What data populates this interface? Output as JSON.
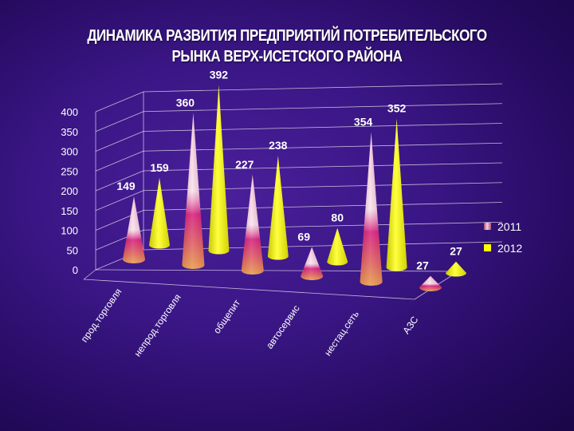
{
  "title": "ДИНАМИКА РАЗВИТИЯ ПРЕДПРИЯТИЙ ПОТРЕБИТЕЛЬСКОГО РЫНКА ВЕРХ-ИСЕТСКОГО РАЙОНА",
  "chart_data": {
    "type": "bar",
    "title": "ДИНАМИКА РАЗВИТИЯ ПРЕДПРИЯТИЙ ПОТРЕБИТЕЛЬСКОГО РЫНКА ВЕРХ-ИСЕТСКОГО РАЙОНА",
    "categories": [
      "прод.торговля",
      "непрод.торговля",
      "общепит",
      "автосервис",
      "нестац.сеть",
      "АЗС"
    ],
    "series": [
      {
        "name": "2011",
        "values": [
          149,
          360,
          227,
          69,
          354,
          27
        ],
        "color": "#e8a0b8"
      },
      {
        "name": "2012",
        "values": [
          159,
          392,
          238,
          80,
          352,
          27
        ],
        "color": "#ffff00"
      }
    ],
    "ylim": [
      0,
      400
    ],
    "yticks": [
      0,
      50,
      100,
      150,
      200,
      250,
      300,
      350,
      400
    ],
    "grid": true,
    "legend_position": "right",
    "style": "3d-cones"
  }
}
